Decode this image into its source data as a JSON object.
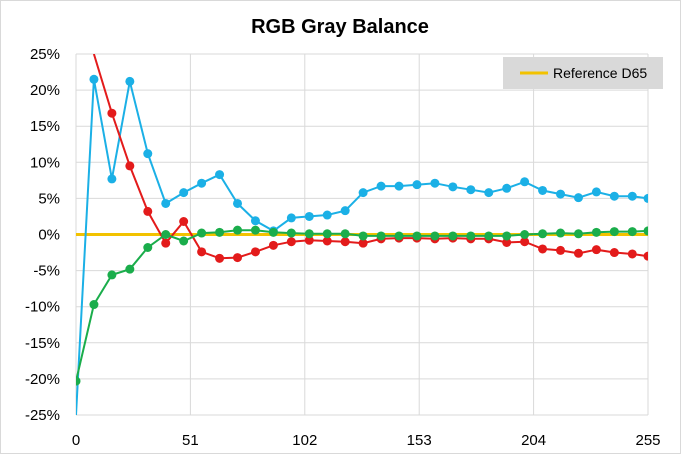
{
  "chart_data": {
    "type": "line",
    "title": "RGB Gray Balance",
    "xlabel": "",
    "ylabel": "",
    "xlim": [
      0,
      255
    ],
    "ylim": [
      -25,
      25
    ],
    "x_ticks": [
      0,
      51,
      102,
      153,
      204,
      255
    ],
    "y_ticks": [
      25,
      20,
      15,
      10,
      5,
      0,
      -5,
      -10,
      -15,
      -20,
      -25
    ],
    "y_tick_labels": [
      "25%",
      "20%",
      "15%",
      "10%",
      "5%",
      "0%",
      "-5%",
      "-10%",
      "-15%",
      "-20%",
      "-25%"
    ],
    "grid": true,
    "legend": {
      "placement": "top-right",
      "entries": [
        "Reference D65"
      ]
    },
    "reference": {
      "name": "Reference D65",
      "color": "#f2c200",
      "x": [
        0,
        255
      ],
      "y": [
        0,
        0
      ]
    },
    "x": [
      0,
      8,
      16,
      24,
      32,
      40,
      48,
      56,
      64,
      72,
      80,
      88,
      96,
      104,
      112,
      120,
      128,
      136,
      144,
      152,
      160,
      168,
      176,
      184,
      192,
      200,
      208,
      216,
      224,
      232,
      240,
      248,
      255
    ],
    "series": [
      {
        "color": "#1bb0e6",
        "x": [
          0,
          8,
          16,
          24,
          32,
          40,
          48,
          56,
          64,
          72,
          80,
          88,
          96,
          104,
          112,
          120,
          128,
          136,
          144,
          152,
          160,
          168,
          176,
          184,
          192,
          200,
          208,
          216,
          224,
          232,
          240,
          248,
          255
        ],
        "values": [
          -25,
          21.5,
          7.7,
          21.2,
          11.2,
          4.3,
          5.8,
          7.1,
          8.3,
          4.3,
          1.9,
          0.5,
          2.3,
          2.5,
          2.7,
          3.3,
          5.8,
          6.7,
          6.7,
          6.9,
          7.1,
          6.6,
          6.2,
          5.8,
          6.4,
          7.3,
          6.1,
          5.6,
          5.1,
          5.9,
          5.3,
          5.3,
          5.0
        ],
        "points_start": 1,
        "line_start_y": -25
      },
      {
        "color": "#e31b1b",
        "x": [
          8,
          16,
          24,
          32,
          40,
          48,
          56,
          64,
          72,
          80,
          88,
          96,
          104,
          112,
          120,
          128,
          136,
          144,
          152,
          160,
          168,
          176,
          184,
          192,
          200,
          208,
          216,
          224,
          232,
          240,
          248,
          255
        ],
        "values": [
          25,
          16.8,
          9.5,
          3.2,
          -1.2,
          1.8,
          -2.4,
          -3.3,
          -3.2,
          -2.4,
          -1.5,
          -1.0,
          -0.8,
          -0.9,
          -1.0,
          -1.2,
          -0.6,
          -0.5,
          -0.5,
          -0.6,
          -0.5,
          -0.6,
          -0.6,
          -1.1,
          -1.0,
          -2.0,
          -2.2,
          -2.6,
          -2.1,
          -2.5,
          -2.7,
          -3.0
        ],
        "points_start": 1
      },
      {
        "color": "#1aad4b",
        "x": [
          0,
          8,
          16,
          24,
          32,
          40,
          48,
          56,
          64,
          72,
          80,
          88,
          96,
          104,
          112,
          120,
          128,
          136,
          144,
          152,
          160,
          168,
          176,
          184,
          192,
          200,
          208,
          216,
          224,
          232,
          240,
          248,
          255
        ],
        "values": [
          -20.3,
          -9.7,
          -5.6,
          -4.8,
          -1.8,
          0.0,
          -0.9,
          0.2,
          0.3,
          0.6,
          0.6,
          0.3,
          0.2,
          0.1,
          0.1,
          0.1,
          -0.2,
          -0.2,
          -0.2,
          -0.2,
          -0.2,
          -0.2,
          -0.2,
          -0.2,
          -0.2,
          0.0,
          0.1,
          0.2,
          0.1,
          0.3,
          0.4,
          0.4,
          0.5
        ],
        "points_start": 0
      }
    ]
  }
}
